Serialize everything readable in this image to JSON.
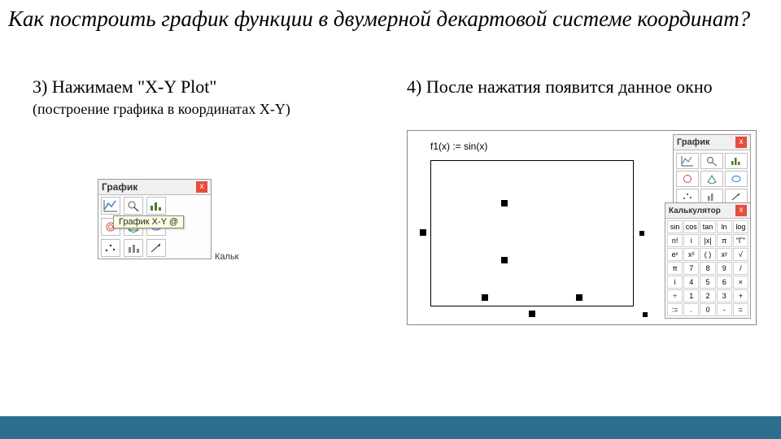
{
  "title": "Как построить график функции в двумерной декартовой системе координат?",
  "step3": {
    "heading": "3) Нажимаем \"X-Y Plot\"",
    "sub": "(построение графика в координатах X-Y)"
  },
  "step4": {
    "heading": "4) После нажатия появится данное окно"
  },
  "toolbox": {
    "title": "График",
    "close": "x",
    "tooltip": "График X-Y @",
    "outside_label": "Кальк",
    "icons": {
      "row1": [
        "line-chart-icon",
        "zoom-icon",
        "bar-chart-icon"
      ],
      "row2": [
        "pie-icon",
        "plus-graph-icon",
        "surface-icon"
      ],
      "row3": [
        "scatter-icon",
        "contour-icon",
        "3d-bar-icon"
      ]
    },
    "colors": {
      "line": "#3a72c9",
      "accent": "#d04a3a",
      "accent2": "#2e8b57",
      "bar": "#4a7a2e"
    }
  },
  "right": {
    "formula": "f1(x) := sin(x)",
    "graph_palette_title": "График",
    "calc_palette_title": "Калькулятор",
    "calc_grid": [
      [
        "sin",
        "cos",
        "tan",
        "ln",
        "log"
      ],
      [
        "n!",
        "i",
        "|x|",
        "π",
        "\"Γ\""
      ],
      [
        "eˣ",
        "x²",
        "( )",
        "xʸ",
        "√"
      ],
      [
        "π",
        "7",
        "8",
        "9",
        "/"
      ],
      [
        "i",
        "4",
        "5",
        "6",
        "×"
      ],
      [
        "÷",
        "1",
        "2",
        "3",
        "+"
      ],
      [
        ":=",
        ".",
        "0",
        "-",
        "="
      ]
    ]
  },
  "colors": {
    "bottom_bar": "#2c6e8e",
    "close_btn": "#e74c3c",
    "tooltip_bg": "#ffffe1"
  }
}
